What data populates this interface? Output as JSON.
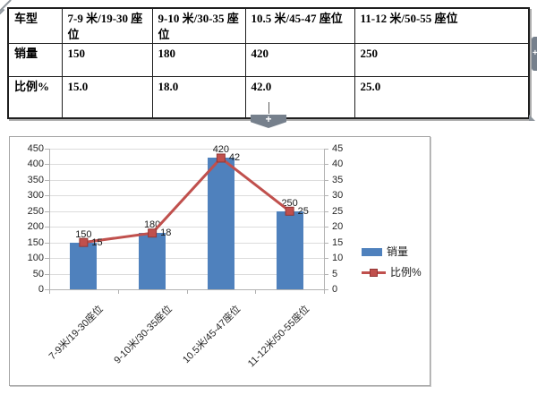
{
  "table": {
    "rows": [
      {
        "cells": [
          "车型",
          "7-9 米/19-30 座位",
          "9-10 米/30-35 座位",
          "10.5 米/45-47 座位",
          "11-12 米/50-55 座位"
        ]
      },
      {
        "cells": [
          "销量",
          "150",
          "180",
          "420",
          "250"
        ]
      },
      {
        "cells": [
          "比例%",
          "15.0",
          "18.0",
          "42.0",
          "25.0"
        ]
      }
    ]
  },
  "handles": {
    "insert_row_plus": "+",
    "insert_col_plus": "+"
  },
  "chart_data": {
    "type": "bar+line",
    "categories": [
      "7-9米/19-30座位",
      "9-10米/30-35座位",
      "10.5米/45-47座位",
      "11-12米/50-55座位"
    ],
    "series": [
      {
        "name": "销量",
        "type": "bar",
        "axis": "left",
        "color": "#4f81bd",
        "values": [
          150,
          180,
          420,
          250
        ]
      },
      {
        "name": "比例%",
        "type": "line",
        "axis": "right",
        "color": "#c0504d",
        "marker_border": "#943634",
        "values": [
          15,
          18,
          42,
          25
        ]
      }
    ],
    "left_axis": {
      "min": 0,
      "max": 450,
      "step": 50
    },
    "right_axis": {
      "min": 0,
      "max": 45,
      "step": 5
    },
    "gridlines": true,
    "data_labels": true,
    "legend_position": "right",
    "title": "",
    "xlabel": "",
    "ylabel": ""
  },
  "colors": {
    "bar": "#4f81bd",
    "line": "#c0504d",
    "grid": "#dcdcdc",
    "axis": "#b3b3b3",
    "handle": "#76808c"
  }
}
